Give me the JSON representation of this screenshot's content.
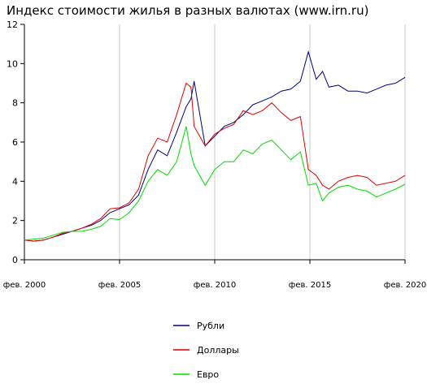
{
  "chart_data": {
    "type": "line",
    "title": "Индекс стоимости жилья в разных валютах (www.irn.ru)",
    "x": [
      "2000-02",
      "2000-08",
      "2001-02",
      "2001-08",
      "2002-02",
      "2002-08",
      "2003-02",
      "2003-08",
      "2004-02",
      "2004-08",
      "2005-02",
      "2005-08",
      "2006-02",
      "2006-08",
      "2007-02",
      "2007-08",
      "2008-02",
      "2008-08",
      "2008-11",
      "2009-01",
      "2009-08",
      "2010-02",
      "2010-08",
      "2011-02",
      "2011-08",
      "2012-02",
      "2012-08",
      "2013-02",
      "2013-08",
      "2014-02",
      "2014-08",
      "2015-01",
      "2015-06",
      "2015-10",
      "2016-02",
      "2016-08",
      "2017-02",
      "2017-08",
      "2018-02",
      "2018-08",
      "2019-02",
      "2019-08",
      "2020-02"
    ],
    "series": [
      {
        "name": "Рубли",
        "color": "#000080",
        "values": [
          1.0,
          0.95,
          1.0,
          1.15,
          1.3,
          1.45,
          1.6,
          1.75,
          2.0,
          2.4,
          2.6,
          2.8,
          3.3,
          4.6,
          5.6,
          5.3,
          6.5,
          7.8,
          8.2,
          9.1,
          5.8,
          6.3,
          6.8,
          7.0,
          7.4,
          7.9,
          8.1,
          8.3,
          8.6,
          8.7,
          9.1,
          10.6,
          9.2,
          9.6,
          8.8,
          8.9,
          8.6,
          8.6,
          8.5,
          8.7,
          8.9,
          9.0,
          9.3
        ]
      },
      {
        "name": "Доллары",
        "color": "#e00000",
        "values": [
          1.0,
          0.95,
          1.0,
          1.15,
          1.35,
          1.45,
          1.6,
          1.8,
          2.1,
          2.6,
          2.65,
          2.9,
          3.6,
          5.3,
          6.2,
          6.0,
          7.4,
          9.0,
          8.8,
          6.8,
          5.8,
          6.4,
          6.7,
          6.9,
          7.6,
          7.4,
          7.6,
          8.0,
          7.5,
          7.1,
          7.3,
          4.6,
          4.3,
          3.8,
          3.6,
          4.0,
          4.2,
          4.3,
          4.2,
          3.8,
          3.9,
          4.0,
          4.3
        ]
      },
      {
        "name": "Евро",
        "color": "#00dd00",
        "values": [
          1.0,
          1.05,
          1.1,
          1.25,
          1.4,
          1.45,
          1.45,
          1.55,
          1.7,
          2.1,
          2.05,
          2.4,
          3.0,
          4.0,
          4.6,
          4.3,
          5.0,
          6.8,
          5.4,
          4.8,
          3.8,
          4.6,
          5.0,
          5.0,
          5.6,
          5.4,
          5.9,
          6.1,
          5.6,
          5.1,
          5.5,
          3.8,
          3.9,
          3.0,
          3.4,
          3.7,
          3.8,
          3.6,
          3.5,
          3.2,
          3.4,
          3.6,
          3.85
        ]
      }
    ],
    "xlim": [
      "2000-02",
      "2020-02"
    ],
    "xticks": [
      {
        "value": "2000-02",
        "label": "фев. 2000"
      },
      {
        "value": "2005-02",
        "label": "фев. 2005"
      },
      {
        "value": "2010-02",
        "label": "фев. 2010"
      },
      {
        "value": "2015-02",
        "label": "фев. 2015"
      },
      {
        "value": "2020-02",
        "label": "фев. 2020"
      }
    ],
    "ylim": [
      0,
      12
    ],
    "yticks": [
      0,
      2,
      4,
      6,
      8,
      10,
      12
    ],
    "grid": "x",
    "legend": "bottom"
  }
}
